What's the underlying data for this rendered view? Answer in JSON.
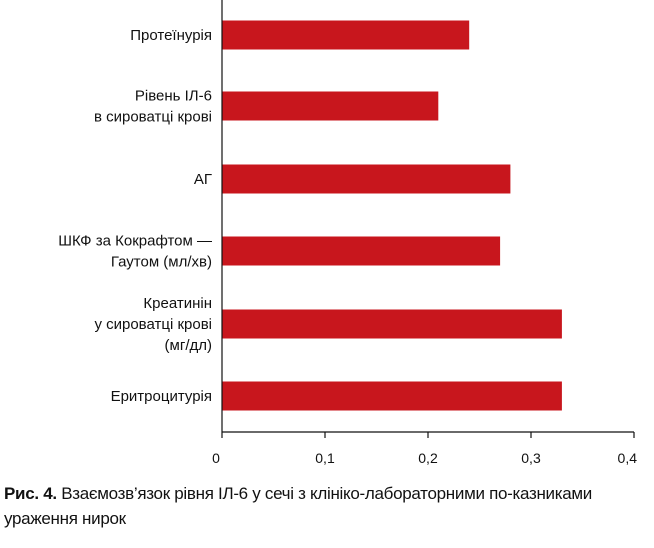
{
  "chart_data": {
    "type": "bar",
    "orientation": "horizontal",
    "categories": [
      [
        "Протеїнурія"
      ],
      [
        "Рівень ІЛ-6",
        "в сироватці крові"
      ],
      [
        "АГ"
      ],
      [
        "ШКФ за Кокрафтом —",
        "Гаутом (мл/хв)"
      ],
      [
        "Креатинін",
        "у сироватці крові",
        "(мг/дл)"
      ],
      [
        "Еритроцитурія"
      ]
    ],
    "values": [
      0.24,
      0.21,
      0.28,
      0.27,
      0.33,
      0.33
    ],
    "xlim": [
      0,
      0.4
    ],
    "xticks": [
      0,
      0.1,
      0.2,
      0.3,
      0.4
    ],
    "xtick_labels": [
      "0",
      "0,1",
      "0,2",
      "0,3",
      "0,4"
    ],
    "grid": false,
    "bar_color": "#c8161d"
  },
  "caption": {
    "prefix": "Рис. 4.",
    "text": "Взаємозв’язок рівня ІЛ-6 у сечі з клініко-лабораторними по-казниками ураження нирок"
  }
}
